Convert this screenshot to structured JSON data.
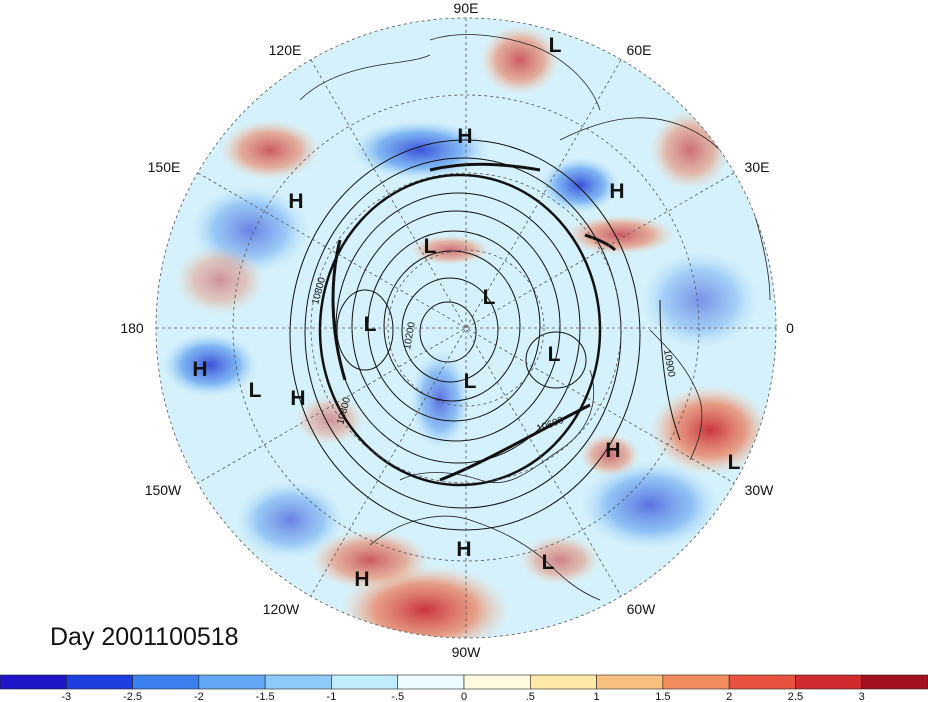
{
  "day_label": "Day 2001100518",
  "longitude_labels": [
    {
      "id": "lon-90e",
      "text": "90E"
    },
    {
      "id": "lon-60e",
      "text": "60E"
    },
    {
      "id": "lon-30e",
      "text": "30E"
    },
    {
      "id": "lon-0",
      "text": "0"
    },
    {
      "id": "lon-30w",
      "text": "30W"
    },
    {
      "id": "lon-60w",
      "text": "60W"
    },
    {
      "id": "lon-90w",
      "text": "90W"
    },
    {
      "id": "lon-120w",
      "text": "120W"
    },
    {
      "id": "lon-150w",
      "text": "150W"
    },
    {
      "id": "lon-180",
      "text": "180"
    },
    {
      "id": "lon-150e",
      "text": "150E"
    },
    {
      "id": "lon-120e",
      "text": "120E"
    }
  ],
  "pressure_centers": [
    "L",
    "H",
    "H",
    "H",
    "L",
    "L",
    "L",
    "L",
    "H",
    "L",
    "H",
    "L",
    "H",
    "H",
    "L",
    "H"
  ],
  "contour_labels": [
    "10800",
    "10800",
    "10600",
    "10900",
    "10200"
  ],
  "colorbar": {
    "colors": [
      "#1f16c9",
      "#1e3fe0",
      "#3c80f0",
      "#62a8f5",
      "#8ecbf8",
      "#c0ecfb",
      "#eafcfd",
      "#fffbe0",
      "#fde8a8",
      "#fac17e",
      "#f38d5e",
      "#e8533f",
      "#cf2a2e",
      "#a3101f"
    ],
    "tick_labels": [
      "-3",
      "-2.5",
      "-2",
      "-1.5",
      "-1",
      "-.5",
      "0",
      ".5",
      "1",
      "1.5",
      "2",
      "2.5",
      "3"
    ]
  }
}
